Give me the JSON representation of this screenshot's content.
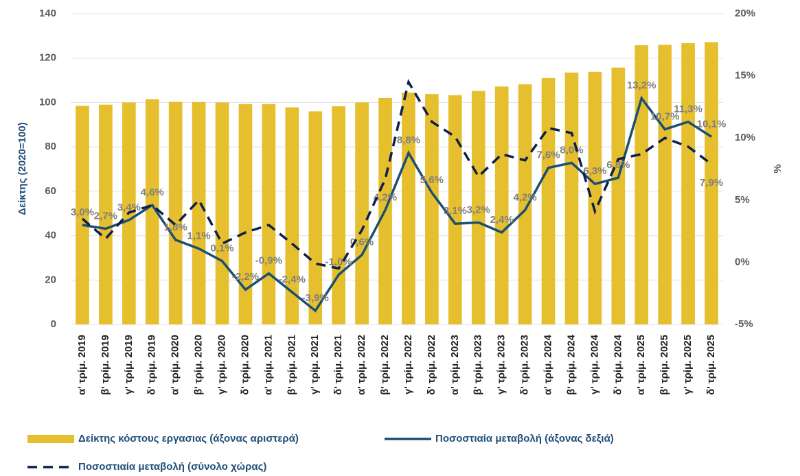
{
  "chart_data": {
    "type": "bar-line",
    "y_label": "Δείκτης (2020=100)",
    "y2_label": "%",
    "categories": [
      "α' τρίμ. 2019",
      "β' τρίμ. 2019",
      "γ' τρίμ. 2019",
      "δ' τρίμ. 2019",
      "α' τρίμ. 2020",
      "β' τρίμ. 2020",
      "γ' τρίμ. 2020",
      "δ' τρίμ. 2020",
      "α' τρίμ. 2021",
      "β' τρίμ. 2021",
      "γ' τρίμ. 2021",
      "δ' τρίμ. 2021",
      "α' τρίμ. 2022",
      "β' τρίμ. 2022",
      "γ' τρίμ. 2022",
      "δ' τρίμ. 2022",
      "α' τρίμ. 2023",
      "β' τρίμ. 2023",
      "γ' τρίμ. 2023",
      "δ' τρίμ. 2023",
      "α' τρίμ. 2024",
      "β' τρίμ. 2024",
      "γ' τρίμ. 2024",
      "δ' τρίμ. 2024",
      "α' τρίμ. 2025",
      "β' τρίμ. 2025",
      "γ' τρίμ. 2025",
      "δ' τρίμ. 2025"
    ],
    "series": [
      {
        "name": "Δείκτης κόστους εργασιας (άξονας αριστερά)",
        "kind": "bar",
        "color": "#e6bf2e",
        "values": [
          98.5,
          99,
          100,
          101.5,
          100.3,
          100.2,
          100,
          99.3,
          99.3,
          97.8,
          96,
          98.3,
          100,
          102,
          104.5,
          103.8,
          103.3,
          105.2,
          107.2,
          108.2,
          111,
          113.5,
          113.8,
          115.7,
          125.8,
          126,
          126.7,
          127.2
        ]
      },
      {
        "name": "Ποσοστιαία μεταβολή (άξονας δεξιά)",
        "kind": "line",
        "axis": "y2",
        "color": "#1b4f72",
        "dash": false,
        "values": [
          3.0,
          2.7,
          3.4,
          4.6,
          1.8,
          1.1,
          0.1,
          -2.2,
          -0.9,
          -2.4,
          -3.9,
          -1.0,
          0.6,
          4.2,
          8.8,
          5.6,
          3.1,
          3.2,
          2.4,
          4.2,
          7.6,
          8.0,
          6.3,
          6.8,
          13.2,
          10.7,
          11.3,
          10.1
        ],
        "value_labels": [
          "3,0%",
          "2,7%",
          "3,4%",
          "4,6%",
          "1,8%",
          "1,1%",
          "0,1%",
          "-2,2%",
          "-0,9%",
          "-2,4%",
          "-3,9%",
          "-1,0%",
          "0,6%",
          "4,2%",
          "8,8%",
          "5,6%",
          "3,1%",
          "3,2%",
          "2,4%",
          "4,2%",
          "7,6%",
          "8,0%",
          "6,3%",
          "6,8%",
          "13,2%",
          "10,7%",
          "11,3%",
          "10,1%"
        ]
      },
      {
        "name": "Ποσοστιαία μεταβολή (σύνολο χώρας)",
        "kind": "line",
        "axis": "y2",
        "color": "#0d1f4a",
        "dash": true,
        "values": [
          3.5,
          1.9,
          4.0,
          4.6,
          3.0,
          5.0,
          1.5,
          2.4,
          3.0,
          1.5,
          -0.1,
          -0.5,
          2.6,
          6.7,
          14.5,
          11.3,
          10.1,
          6.9,
          8.7,
          8.2,
          10.8,
          10.4,
          4.1,
          8.3,
          8.7,
          10.0,
          9.3,
          7.9
        ],
        "value_labels": [
          null,
          null,
          null,
          null,
          null,
          null,
          null,
          null,
          null,
          null,
          null,
          null,
          null,
          null,
          null,
          null,
          null,
          null,
          null,
          null,
          null,
          null,
          null,
          null,
          null,
          null,
          null,
          "7,9%"
        ]
      }
    ],
    "ylim": [
      0,
      140
    ],
    "yticks": [
      0,
      20,
      40,
      60,
      80,
      100,
      120,
      140
    ],
    "y2lim": [
      -5,
      20
    ],
    "y2ticks": [
      {
        "value": -5,
        "label": "-5%"
      },
      {
        "value": 0,
        "label": "0%"
      },
      {
        "value": 5,
        "label": "5%"
      },
      {
        "value": 10,
        "label": "10%"
      },
      {
        "value": 15,
        "label": "15%"
      },
      {
        "value": 20,
        "label": "20%"
      }
    ],
    "grid": true
  }
}
